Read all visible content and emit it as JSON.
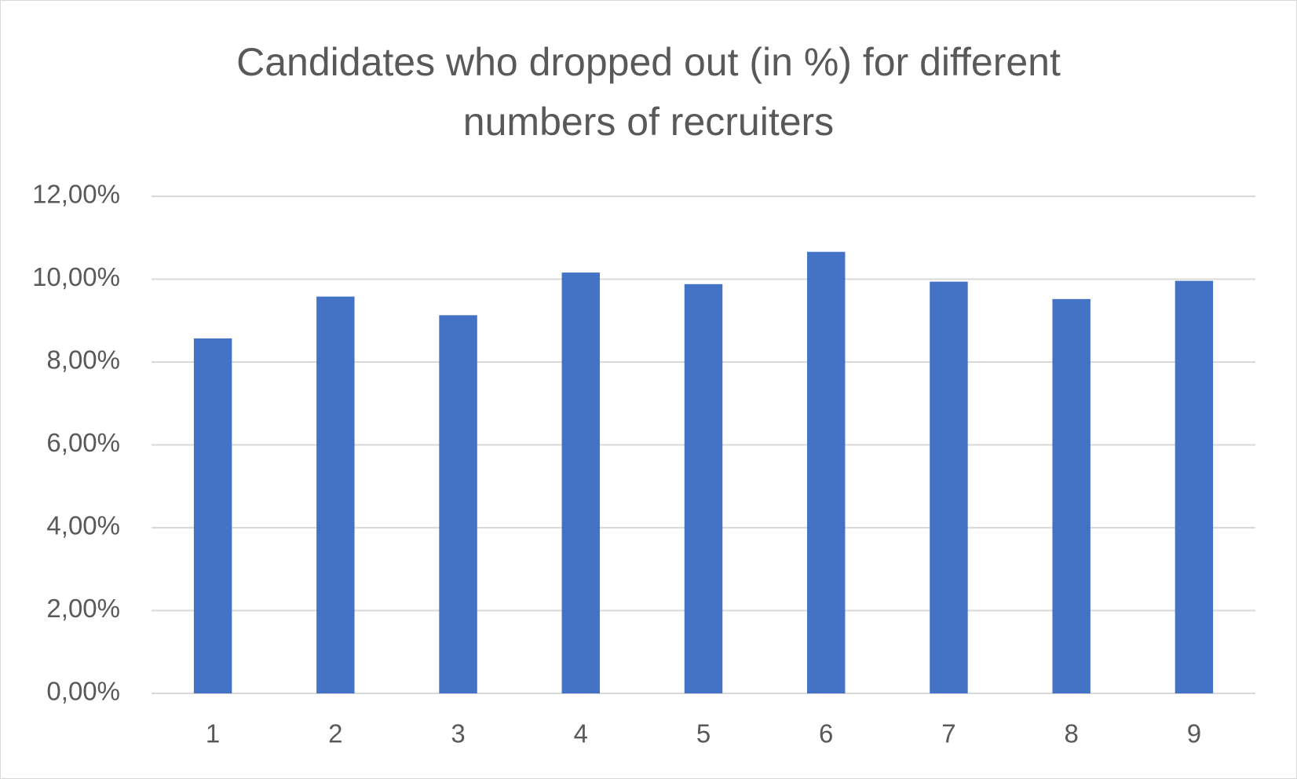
{
  "chart_data": {
    "type": "bar",
    "title": "Candidates who dropped out (in %) for different numbers of recruiters",
    "categories": [
      "1",
      "2",
      "3",
      "4",
      "5",
      "6",
      "7",
      "8",
      "9"
    ],
    "values": [
      8.57,
      9.58,
      9.13,
      10.16,
      9.88,
      10.66,
      9.94,
      9.52,
      9.96
    ],
    "color": "#4472c4",
    "ylim": [
      0,
      12
    ],
    "yticks": [
      {
        "value": 0,
        "label": "0,00%"
      },
      {
        "value": 2,
        "label": "2,00%"
      },
      {
        "value": 4,
        "label": "4,00%"
      },
      {
        "value": 6,
        "label": "6,00%"
      },
      {
        "value": 8,
        "label": "8,00%"
      },
      {
        "value": 10,
        "label": "10,00%"
      },
      {
        "value": 12,
        "label": "12,00%"
      }
    ],
    "grid": true
  }
}
